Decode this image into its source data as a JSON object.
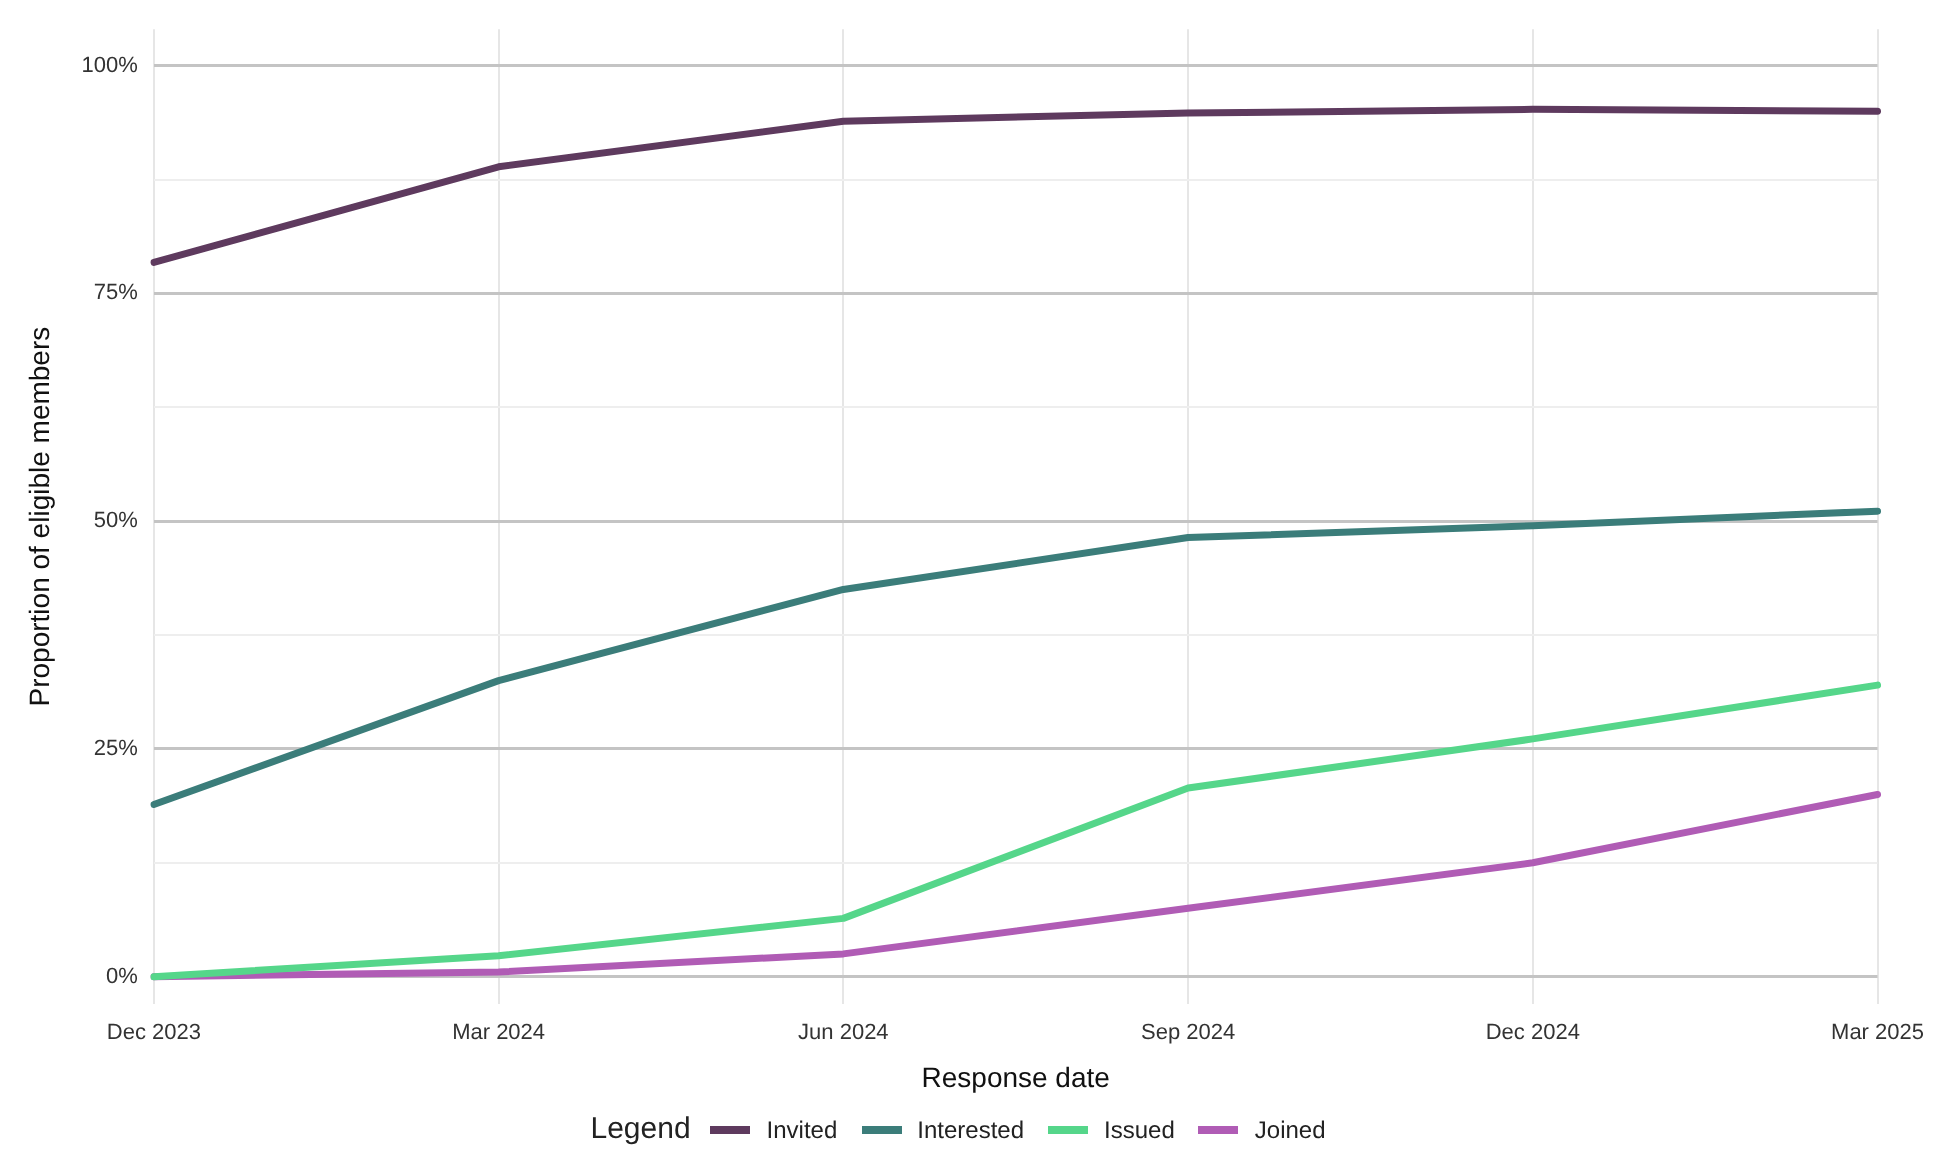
{
  "chart_data": {
    "type": "line",
    "xlabel": "Response date",
    "ylabel": "Proportion of eligible members",
    "legend_title": "Legend",
    "legend": "bottom",
    "grid": true,
    "marker": "none",
    "line_style": "solid",
    "categories": [
      "Dec 2023",
      "Mar 2024",
      "Jun 2024",
      "Sep 2024",
      "Dec 2024",
      "Mar 2025"
    ],
    "ylim": [
      -3,
      104
    ],
    "yticks": [
      {
        "value": 0,
        "label": "0%"
      },
      {
        "value": 12.5,
        "label": null
      },
      {
        "value": 25,
        "label": "25%"
      },
      {
        "value": 37.5,
        "label": null
      },
      {
        "value": 50,
        "label": "50%"
      },
      {
        "value": 62.5,
        "label": null
      },
      {
        "value": 75,
        "label": "75%"
      },
      {
        "value": 87.5,
        "label": null
      },
      {
        "value": 100,
        "label": "100%"
      }
    ],
    "series": [
      {
        "name": "Invited",
        "color": "#5e3a5e",
        "values": [
          78.4,
          88.9,
          93.9,
          94.8,
          95.2,
          95.0
        ]
      },
      {
        "name": "Interested",
        "color": "#3b7d7a",
        "values": [
          18.9,
          32.5,
          42.5,
          48.2,
          49.5,
          51.1
        ]
      },
      {
        "name": "Issued",
        "color": "#55d68a",
        "values": [
          0,
          2.3,
          6.4,
          20.7,
          26.1,
          32.0
        ]
      },
      {
        "name": "Joined",
        "color": "#b05cb5",
        "values": [
          0,
          0.5,
          2.5,
          7.5,
          12.5,
          20.0
        ]
      }
    ]
  }
}
